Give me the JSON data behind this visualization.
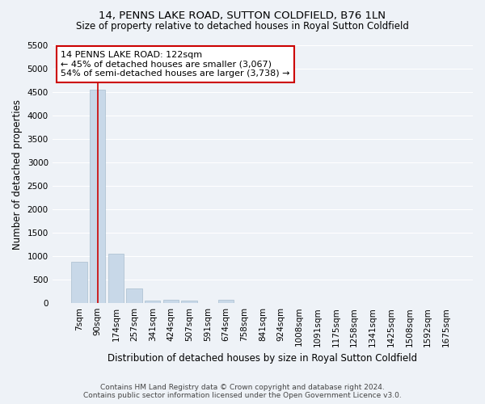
{
  "title": "14, PENNS LAKE ROAD, SUTTON COLDFIELD, B76 1LN",
  "subtitle": "Size of property relative to detached houses in Royal Sutton Coldfield",
  "xlabel": "Distribution of detached houses by size in Royal Sutton Coldfield",
  "ylabel": "Number of detached properties",
  "footer1": "Contains HM Land Registry data © Crown copyright and database right 2024.",
  "footer2": "Contains public sector information licensed under the Open Government Licence v3.0.",
  "annotation_line1": "14 PENNS LAKE ROAD: 122sqm",
  "annotation_line2": "← 45% of detached houses are smaller (3,067)",
  "annotation_line3": "54% of semi-detached houses are larger (3,738) →",
  "bar_labels": [
    "7sqm",
    "90sqm",
    "174sqm",
    "257sqm",
    "341sqm",
    "424sqm",
    "507sqm",
    "591sqm",
    "674sqm",
    "758sqm",
    "841sqm",
    "924sqm",
    "1008sqm",
    "1091sqm",
    "1175sqm",
    "1258sqm",
    "1341sqm",
    "1425sqm",
    "1508sqm",
    "1592sqm",
    "1675sqm"
  ],
  "bar_values": [
    880,
    4560,
    1050,
    310,
    60,
    65,
    55,
    0,
    65,
    0,
    0,
    0,
    0,
    0,
    0,
    0,
    0,
    0,
    0,
    0,
    0
  ],
  "bar_color": "#c8d8e8",
  "bar_edgecolor": "#a8bece",
  "vline_x": 1,
  "vline_color": "#cc0000",
  "ylim_max": 5500,
  "yticks": [
    0,
    500,
    1000,
    1500,
    2000,
    2500,
    3000,
    3500,
    4000,
    4500,
    5000,
    5500
  ],
  "bg_color": "#eef2f7",
  "grid_color": "#ffffff",
  "ann_box_facecolor": "#ffffff",
  "ann_box_edgecolor": "#cc0000",
  "title_fontsize": 9.5,
  "subtitle_fontsize": 8.5,
  "xlabel_fontsize": 8.5,
  "ylabel_fontsize": 8.5,
  "tick_fontsize": 7.5,
  "ann_fontsize": 8,
  "footer_fontsize": 6.5
}
